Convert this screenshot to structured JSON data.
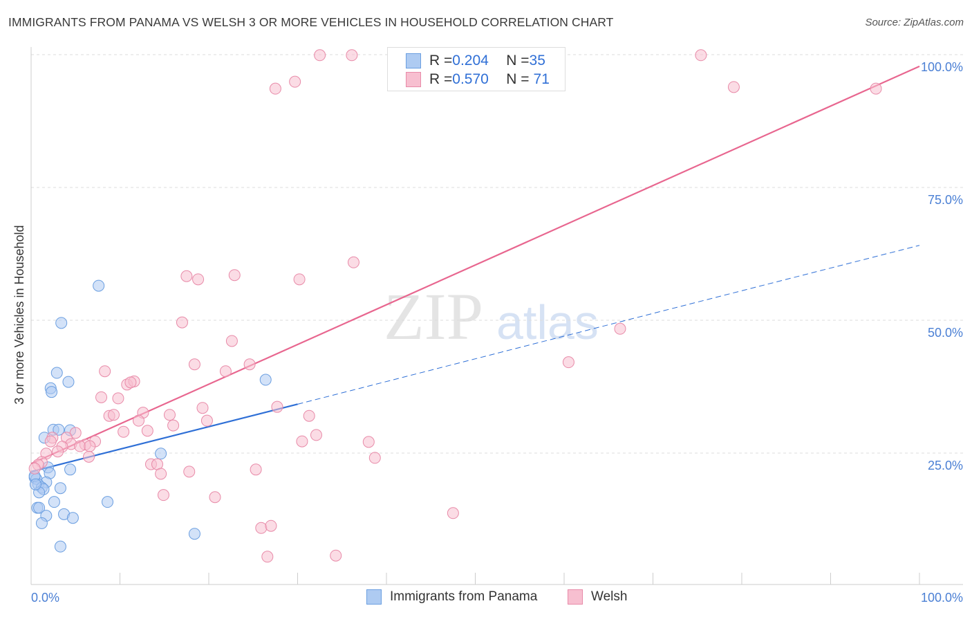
{
  "chart_data": {
    "type": "scatter",
    "title": "IMMIGRANTS FROM PANAMA VS WELSH 3 OR MORE VEHICLES IN HOUSEHOLD CORRELATION CHART",
    "source": "Source: ZipAtlas.com",
    "xlabel": "",
    "ylabel": "3 or more Vehicles in Household",
    "xlim": [
      0,
      100
    ],
    "ylim": [
      0,
      100
    ],
    "x_tick_labels": [
      "0.0%",
      "100.0%"
    ],
    "y_tick_labels": [
      "100.0%",
      "75.0%",
      "50.0%",
      "25.0%"
    ],
    "y_ticks": [
      100,
      75,
      50,
      25
    ],
    "watermark": "ZIPatlas",
    "legend": [
      {
        "name": "Immigrants from Panama",
        "R_label": "R = ",
        "R": "0.204",
        "N_label": "N = ",
        "N": "35",
        "color": "#6a9ee0",
        "fill": "#aecbf2"
      },
      {
        "name": "Welsh",
        "R_label": "R = ",
        "R": "0.570",
        "N_label": "N = ",
        "N": "71",
        "color": "#e88aa8",
        "fill": "#f7bfd0"
      }
    ],
    "series": [
      {
        "name": "Immigrants from Panama",
        "color": "#6a9ee0",
        "fill": "#aecbf2",
        "line_color": "#2e6fd6",
        "trend": {
          "start": [
            0,
            21.5
          ],
          "solid_end": [
            30,
            34.2
          ],
          "end": [
            100,
            64.1
          ]
        },
        "points": [
          [
            7.6,
            56.5
          ],
          [
            3.4,
            49.5
          ],
          [
            2.9,
            40.1
          ],
          [
            4.2,
            38.4
          ],
          [
            2.2,
            37.2
          ],
          [
            2.3,
            36.5
          ],
          [
            26.4,
            38.8
          ],
          [
            2.5,
            29.4
          ],
          [
            3.1,
            29.4
          ],
          [
            4.4,
            29.3
          ],
          [
            1.5,
            27.9
          ],
          [
            14.6,
            24.9
          ],
          [
            4.4,
            21.9
          ],
          [
            1.9,
            22.3
          ],
          [
            2.1,
            21.2
          ],
          [
            0.4,
            20.4
          ],
          [
            0.6,
            20.1
          ],
          [
            1.7,
            19.5
          ],
          [
            0.8,
            19.1
          ],
          [
            1.2,
            18.5
          ],
          [
            1.4,
            18.2
          ],
          [
            3.3,
            18.4
          ],
          [
            0.9,
            17.6
          ],
          [
            2.6,
            15.8
          ],
          [
            8.6,
            15.8
          ],
          [
            0.7,
            14.7
          ],
          [
            0.9,
            14.7
          ],
          [
            1.7,
            13.2
          ],
          [
            3.7,
            13.5
          ],
          [
            4.7,
            12.8
          ],
          [
            1.2,
            11.8
          ],
          [
            18.4,
            9.8
          ],
          [
            3.3,
            7.4
          ],
          [
            0.4,
            20.7
          ],
          [
            0.5,
            19.1
          ]
        ]
      },
      {
        "name": "Welsh",
        "color": "#e88aa8",
        "fill": "#f7bfd0",
        "line_color": "#e8668f",
        "trend": {
          "start": [
            0,
            23.0
          ],
          "solid_end": [
            100,
            97.8
          ],
          "end": [
            100,
            97.8
          ]
        },
        "points": [
          [
            32.5,
            99.9
          ],
          [
            36.1,
            99.9
          ],
          [
            41.2,
            99.9
          ],
          [
            45.5,
            99.9
          ],
          [
            75.4,
            99.9
          ],
          [
            27.5,
            93.6
          ],
          [
            29.7,
            94.9
          ],
          [
            79.1,
            93.9
          ],
          [
            95.1,
            93.6
          ],
          [
            36.3,
            60.9
          ],
          [
            17.5,
            58.3
          ],
          [
            18.8,
            57.7
          ],
          [
            22.9,
            58.5
          ],
          [
            30.2,
            57.7
          ],
          [
            17.0,
            49.6
          ],
          [
            22.6,
            46.1
          ],
          [
            66.3,
            48.4
          ],
          [
            60.5,
            42.1
          ],
          [
            18.4,
            41.7
          ],
          [
            21.9,
            40.4
          ],
          [
            24.6,
            41.7
          ],
          [
            8.3,
            40.4
          ],
          [
            10.8,
            37.9
          ],
          [
            11.6,
            38.5
          ],
          [
            11.2,
            38.3
          ],
          [
            7.9,
            35.5
          ],
          [
            9.8,
            35.3
          ],
          [
            27.7,
            33.7
          ],
          [
            19.3,
            33.5
          ],
          [
            8.8,
            32.0
          ],
          [
            9.3,
            32.2
          ],
          [
            12.6,
            32.6
          ],
          [
            15.6,
            32.2
          ],
          [
            31.3,
            32.0
          ],
          [
            12.1,
            31.1
          ],
          [
            19.8,
            31.1
          ],
          [
            16.0,
            30.2
          ],
          [
            10.4,
            29.0
          ],
          [
            13.1,
            29.2
          ],
          [
            32.1,
            28.4
          ],
          [
            5.0,
            28.8
          ],
          [
            4.0,
            27.9
          ],
          [
            2.4,
            27.9
          ],
          [
            7.2,
            27.2
          ],
          [
            6.1,
            26.6
          ],
          [
            4.5,
            26.7
          ],
          [
            38.0,
            27.1
          ],
          [
            30.5,
            27.2
          ],
          [
            3.5,
            26.2
          ],
          [
            5.5,
            26.3
          ],
          [
            6.6,
            26.3
          ],
          [
            1.7,
            24.9
          ],
          [
            6.5,
            24.3
          ],
          [
            3.0,
            25.3
          ],
          [
            38.7,
            24.1
          ],
          [
            13.5,
            22.9
          ],
          [
            14.2,
            22.9
          ],
          [
            17.8,
            21.5
          ],
          [
            25.3,
            21.9
          ],
          [
            14.6,
            21.1
          ],
          [
            1.2,
            23.3
          ],
          [
            0.8,
            22.8
          ],
          [
            0.4,
            22.1
          ],
          [
            14.9,
            17.1
          ],
          [
            20.7,
            16.7
          ],
          [
            47.5,
            13.7
          ],
          [
            25.9,
            10.9
          ],
          [
            27.0,
            11.3
          ],
          [
            26.6,
            5.5
          ],
          [
            34.3,
            5.7
          ],
          [
            2.2,
            27.2
          ]
        ]
      }
    ]
  }
}
